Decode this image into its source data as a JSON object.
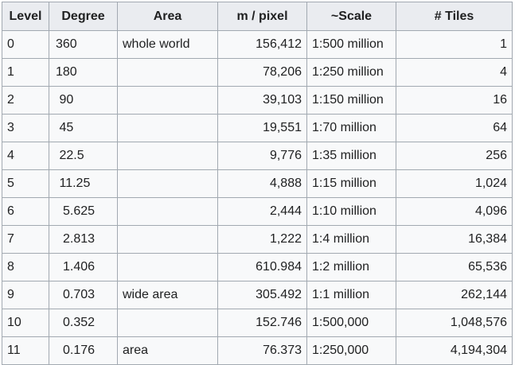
{
  "table": {
    "headers": [
      "Level",
      "Degree",
      "Area",
      "m / pixel",
      "~Scale",
      "# Tiles"
    ],
    "rows": [
      {
        "level": "0",
        "degree": "360",
        "area": "whole world",
        "m_per_pixel": "156,412",
        "scale": "1:500 million",
        "tiles": "1"
      },
      {
        "level": "1",
        "degree": "180",
        "area": "",
        "m_per_pixel": "78,206",
        "scale": "1:250 million",
        "tiles": "4"
      },
      {
        "level": "2",
        "degree": "90",
        "area": "",
        "m_per_pixel": "39,103",
        "scale": "1:150 million",
        "tiles": "16"
      },
      {
        "level": "3",
        "degree": "45",
        "area": "",
        "m_per_pixel": "19,551",
        "scale": "1:70 million",
        "tiles": "64"
      },
      {
        "level": "4",
        "degree": "22.5",
        "area": "",
        "m_per_pixel": "9,776",
        "scale": "1:35 million",
        "tiles": "256"
      },
      {
        "level": "5",
        "degree": "11.25",
        "area": "",
        "m_per_pixel": "4,888",
        "scale": "1:15 million",
        "tiles": "1,024"
      },
      {
        "level": "6",
        "degree": "5.625",
        "area": "",
        "m_per_pixel": "2,444",
        "scale": "1:10 million",
        "tiles": "4,096"
      },
      {
        "level": "7",
        "degree": "2.813",
        "area": "",
        "m_per_pixel": "1,222",
        "scale": "1:4 million",
        "tiles": "16,384"
      },
      {
        "level": "8",
        "degree": "1.406",
        "area": "",
        "m_per_pixel": "610.984",
        "scale": "1:2 million",
        "tiles": "65,536"
      },
      {
        "level": "9",
        "degree": "0.703",
        "area": "wide area",
        "m_per_pixel": "305.492",
        "scale": "1:1 million",
        "tiles": "262,144"
      },
      {
        "level": "10",
        "degree": "0.352",
        "area": "",
        "m_per_pixel": "152.746",
        "scale": "1:500,000",
        "tiles": "1,048,576"
      },
      {
        "level": "11",
        "degree": "0.176",
        "area": "area",
        "m_per_pixel": "76.373",
        "scale": "1:250,000",
        "tiles": "4,194,304"
      }
    ]
  }
}
